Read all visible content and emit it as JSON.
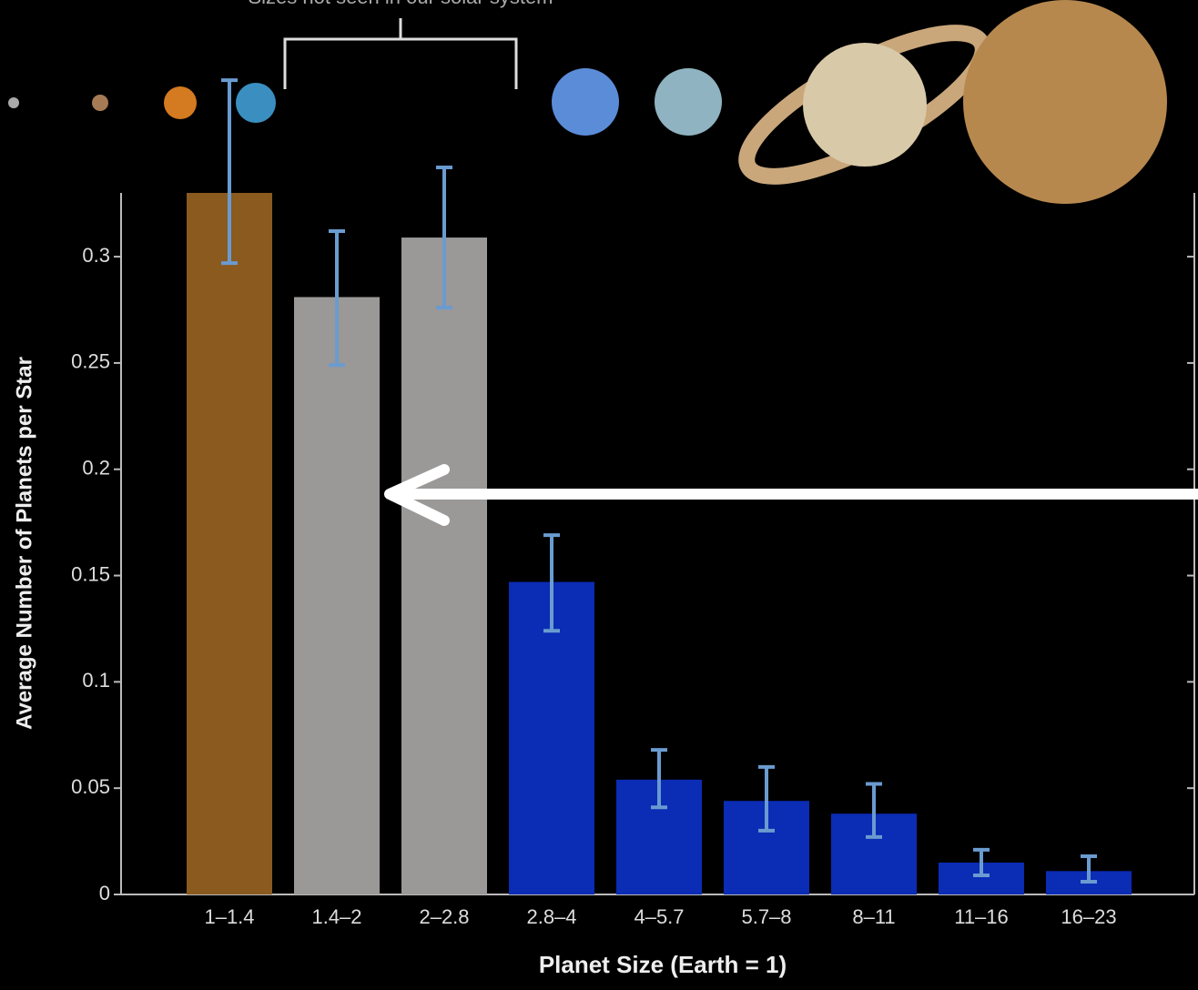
{
  "chart_data": {
    "type": "bar",
    "annotation": "Sizes not seen in our solar system",
    "xlabel": "Planet Size (Earth = 1)",
    "ylabel": "Average Number of Planets per Star",
    "categories": [
      "1–1.4",
      "1.4–2",
      "2–2.8",
      "2.8–4",
      "4–5.7",
      "5.7–8",
      "8–11",
      "11–16",
      "16–23"
    ],
    "values": [
      0.33,
      0.281,
      0.309,
      0.147,
      0.054,
      0.044,
      0.038,
      0.015,
      0.011
    ],
    "error_low": [
      0.297,
      0.249,
      0.276,
      0.124,
      0.041,
      0.03,
      0.027,
      0.009,
      0.006
    ],
    "error_high": [
      0.383,
      0.312,
      0.342,
      0.169,
      0.068,
      0.06,
      0.052,
      0.021,
      0.018
    ],
    "colors": [
      "#8a5a1f",
      "#9b9898",
      "#9b9898",
      "#0b2cb5",
      "#0b2cb5",
      "#0b2cb5",
      "#0b2cb5",
      "#0b2cb5",
      "#0b2cb5"
    ],
    "error_color": "#6a9bd0",
    "ylim": [
      0,
      0.33
    ],
    "yticks": [
      0,
      0.05,
      0.1,
      0.15,
      0.2,
      0.25,
      0.3
    ],
    "grid": false
  }
}
